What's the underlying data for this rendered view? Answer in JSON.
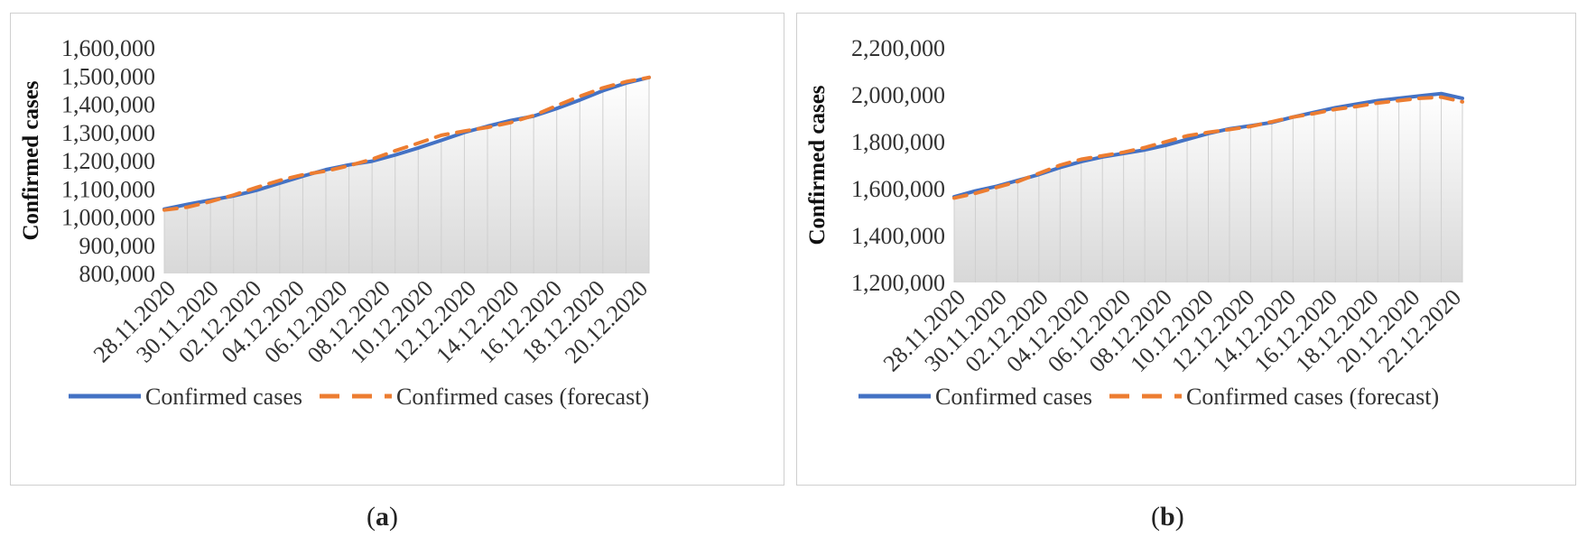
{
  "chart_data": [
    {
      "type": "area",
      "panel": "a",
      "caption_letter": "a",
      "ylabel": "Confirmed cases",
      "ylim": [
        800000,
        1600000
      ],
      "ytick_labels": [
        "800,000",
        "900,000",
        "1,000,000",
        "1,100,000",
        "1,200,000",
        "1,300,000",
        "1,400,000",
        "1,500,000",
        "1,600,000"
      ],
      "xtick_labels": [
        "28.11.2020",
        "30.11.2020",
        "02.12.2020",
        "04.12.2020",
        "06.12.2020",
        "08.12.2020",
        "10.12.2020",
        "12.12.2020",
        "14.12.2020",
        "16.12.2020",
        "18.12.2020",
        "20.12.2020"
      ],
      "legend": [
        "Confirmed cases",
        "Confirmed cases (forecast)"
      ],
      "series": [
        {
          "name": "Confirmed cases",
          "color": "#4472c4",
          "style": "solid",
          "values": [
            1028000,
            1045000,
            1060000,
            1075000,
            1095000,
            1120000,
            1145000,
            1168000,
            1185000,
            1198000,
            1220000,
            1245000,
            1272000,
            1300000,
            1322000,
            1342000,
            1358000,
            1385000,
            1415000,
            1448000,
            1475000,
            1495000
          ]
        },
        {
          "name": "Confirmed cases (forecast)",
          "color": "#ed7d31",
          "style": "dashed",
          "values": [
            1025000,
            1035000,
            1055000,
            1078000,
            1105000,
            1130000,
            1150000,
            1163000,
            1182000,
            1205000,
            1235000,
            1262000,
            1290000,
            1305000,
            1318000,
            1335000,
            1360000,
            1395000,
            1428000,
            1458000,
            1480000,
            1495000
          ]
        }
      ]
    },
    {
      "type": "area",
      "panel": "b",
      "caption_letter": "b",
      "ylabel": "Confirmed cases",
      "ylim": [
        1200000,
        2200000
      ],
      "ytick_labels": [
        "1,200,000",
        "1,400,000",
        "1,600,000",
        "1,800,000",
        "2,000,000",
        "2,200,000"
      ],
      "xtick_labels": [
        "28.11.2020",
        "30.11.2020",
        "02.12.2020",
        "04.12.2020",
        "06.12.2020",
        "08.12.2020",
        "10.12.2020",
        "12.12.2020",
        "14.12.2020",
        "16.12.2020",
        "18.12.2020",
        "20.12.2020",
        "22.12.2020"
      ],
      "legend": [
        "Confirmed cases",
        "Confirmed cases (forecast)"
      ],
      "series": [
        {
          "name": "Confirmed cases",
          "color": "#4472c4",
          "style": "solid",
          "values": [
            1565000,
            1590000,
            1610000,
            1635000,
            1660000,
            1690000,
            1715000,
            1735000,
            1750000,
            1765000,
            1785000,
            1810000,
            1835000,
            1855000,
            1868000,
            1882000,
            1905000,
            1925000,
            1945000,
            1960000,
            1975000,
            1985000,
            1995000,
            2005000,
            1985000
          ]
        },
        {
          "name": "Confirmed cases (forecast)",
          "color": "#ed7d31",
          "style": "dashed",
          "values": [
            1560000,
            1580000,
            1605000,
            1630000,
            1665000,
            1700000,
            1725000,
            1740000,
            1755000,
            1775000,
            1800000,
            1825000,
            1840000,
            1852000,
            1865000,
            1885000,
            1905000,
            1920000,
            1938000,
            1950000,
            1965000,
            1975000,
            1985000,
            1990000,
            1970000
          ]
        }
      ]
    }
  ]
}
